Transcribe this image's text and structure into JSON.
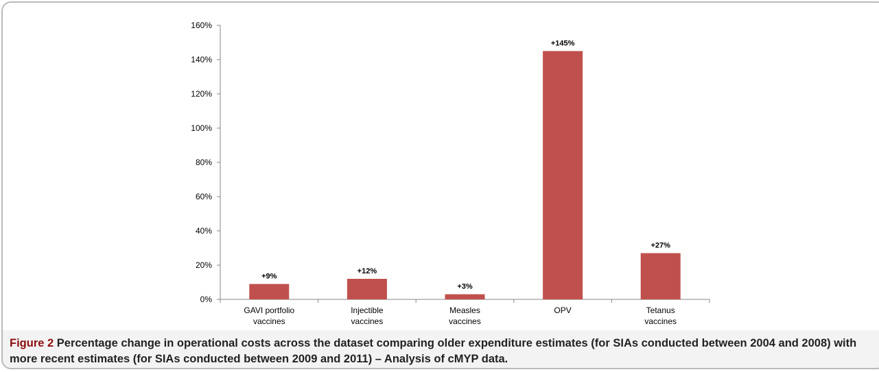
{
  "caption": {
    "label": "Figure 2",
    "text": "Percentage change in operational costs across the dataset comparing older expenditure estimates (for SIAs conducted between 2004 and 2008) with more recent estimates (for SIAs conducted between 2009 and 2011) – Analysis of cMYP data."
  },
  "chart_data": {
    "type": "bar",
    "categories": [
      [
        "GAVI portfolio",
        "vaccines"
      ],
      [
        "Injectible",
        "vaccines"
      ],
      [
        "Measles",
        "vaccines"
      ],
      [
        "OPV"
      ],
      [
        "Tetanus",
        "vaccines"
      ]
    ],
    "values": [
      9,
      12,
      3,
      145,
      27
    ],
    "data_labels": [
      "+9%",
      "+12%",
      "+3%",
      "+145%",
      "+27%"
    ],
    "y_ticks": [
      "0%",
      "20%",
      "40%",
      "60%",
      "80%",
      "100%",
      "120%",
      "140%",
      "160%"
    ],
    "ylim": [
      0,
      160
    ],
    "y_unit": "percent",
    "title": "",
    "xlabel": "",
    "ylabel": "",
    "grid": false,
    "legend": "none",
    "bar_color": "#c0504d"
  }
}
